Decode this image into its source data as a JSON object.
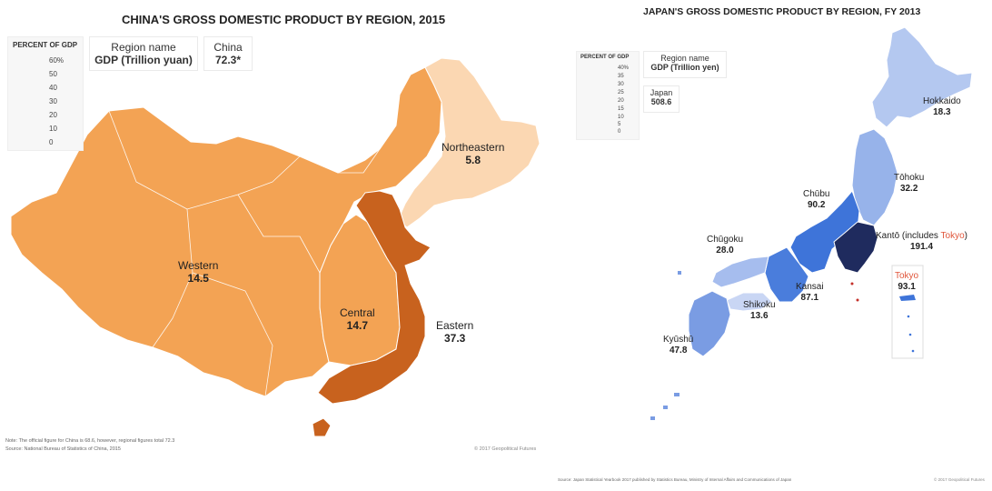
{
  "china": {
    "title": "CHINA'S GROSS DOMESTIC PRODUCT BY REGION, 2015",
    "legend": {
      "title": "PERCENT OF GDP",
      "ticks": [
        "60%",
        "50",
        "40",
        "30",
        "20",
        "10",
        "0"
      ],
      "scale_colors": [
        "#b5561a",
        "#ef9f4f",
        "#fde4cb"
      ]
    },
    "key": {
      "name_label": "Region name",
      "value_label": "GDP (Trillion yuan)",
      "country_name": "China",
      "country_value": "72.3*"
    },
    "regions": [
      {
        "name": "Northeastern",
        "value": "5.8",
        "color": "#fbd7b2"
      },
      {
        "name": "Western",
        "value": "14.5",
        "color": "#f3a354"
      },
      {
        "name": "Central",
        "value": "14.7",
        "color": "#f3a354"
      },
      {
        "name": "Eastern",
        "value": "37.3",
        "color": "#c8621e"
      }
    ],
    "note": "Note: The official figure for China is 68.6, however, regional figures total 72.3",
    "source": "Source: National Bureau of Statistics of China, 2015",
    "copyright": "© 2017 Geopolitical Futures"
  },
  "japan": {
    "title": "JAPAN'S GROSS DOMESTIC PRODUCT BY REGION, FY 2013",
    "legend": {
      "title": "PERCENT OF GDP",
      "ticks": [
        "40%",
        "35",
        "30",
        "25",
        "20",
        "15",
        "10",
        "5",
        "0"
      ],
      "scale_colors": [
        "#1d2a5c",
        "#3a6fd8",
        "#d2ddf5"
      ]
    },
    "key": {
      "name_label": "Region name",
      "value_label": "GDP (Trillion yen)",
      "country_name": "Japan",
      "country_value": "508.6"
    },
    "regions": [
      {
        "name": "Hokkaido",
        "value": "18.3",
        "color": "#b4c8f0"
      },
      {
        "name": "Tōhoku",
        "value": "32.2",
        "color": "#97b3ea"
      },
      {
        "name": "Chūbu",
        "value": "90.2",
        "color": "#3e74d9"
      },
      {
        "name": "Kantō (includes ",
        "highlight": "Tokyo",
        "suffix": ")",
        "value": "191.4",
        "color": "#1f2b5e"
      },
      {
        "name": "Chūgoku",
        "value": "28.0",
        "color": "#a6bdee"
      },
      {
        "name": "Kansai",
        "value": "87.1",
        "color": "#4a7ddc"
      },
      {
        "name": "Shikoku",
        "value": "13.6",
        "color": "#c9d6f4"
      },
      {
        "name": "Kyūshū",
        "value": "47.8",
        "color": "#7a9ce3"
      }
    ],
    "tokyo_inset": {
      "name": "Tokyo",
      "value": "93.1",
      "accent": "#e0553a"
    },
    "source": "Source: Japan Statistical Yearbook 2017 published by Statistics Bureau, Ministry of Internal Affairs and Communications of Japan",
    "copyright": "© 2017 Geopolitical Futures"
  }
}
